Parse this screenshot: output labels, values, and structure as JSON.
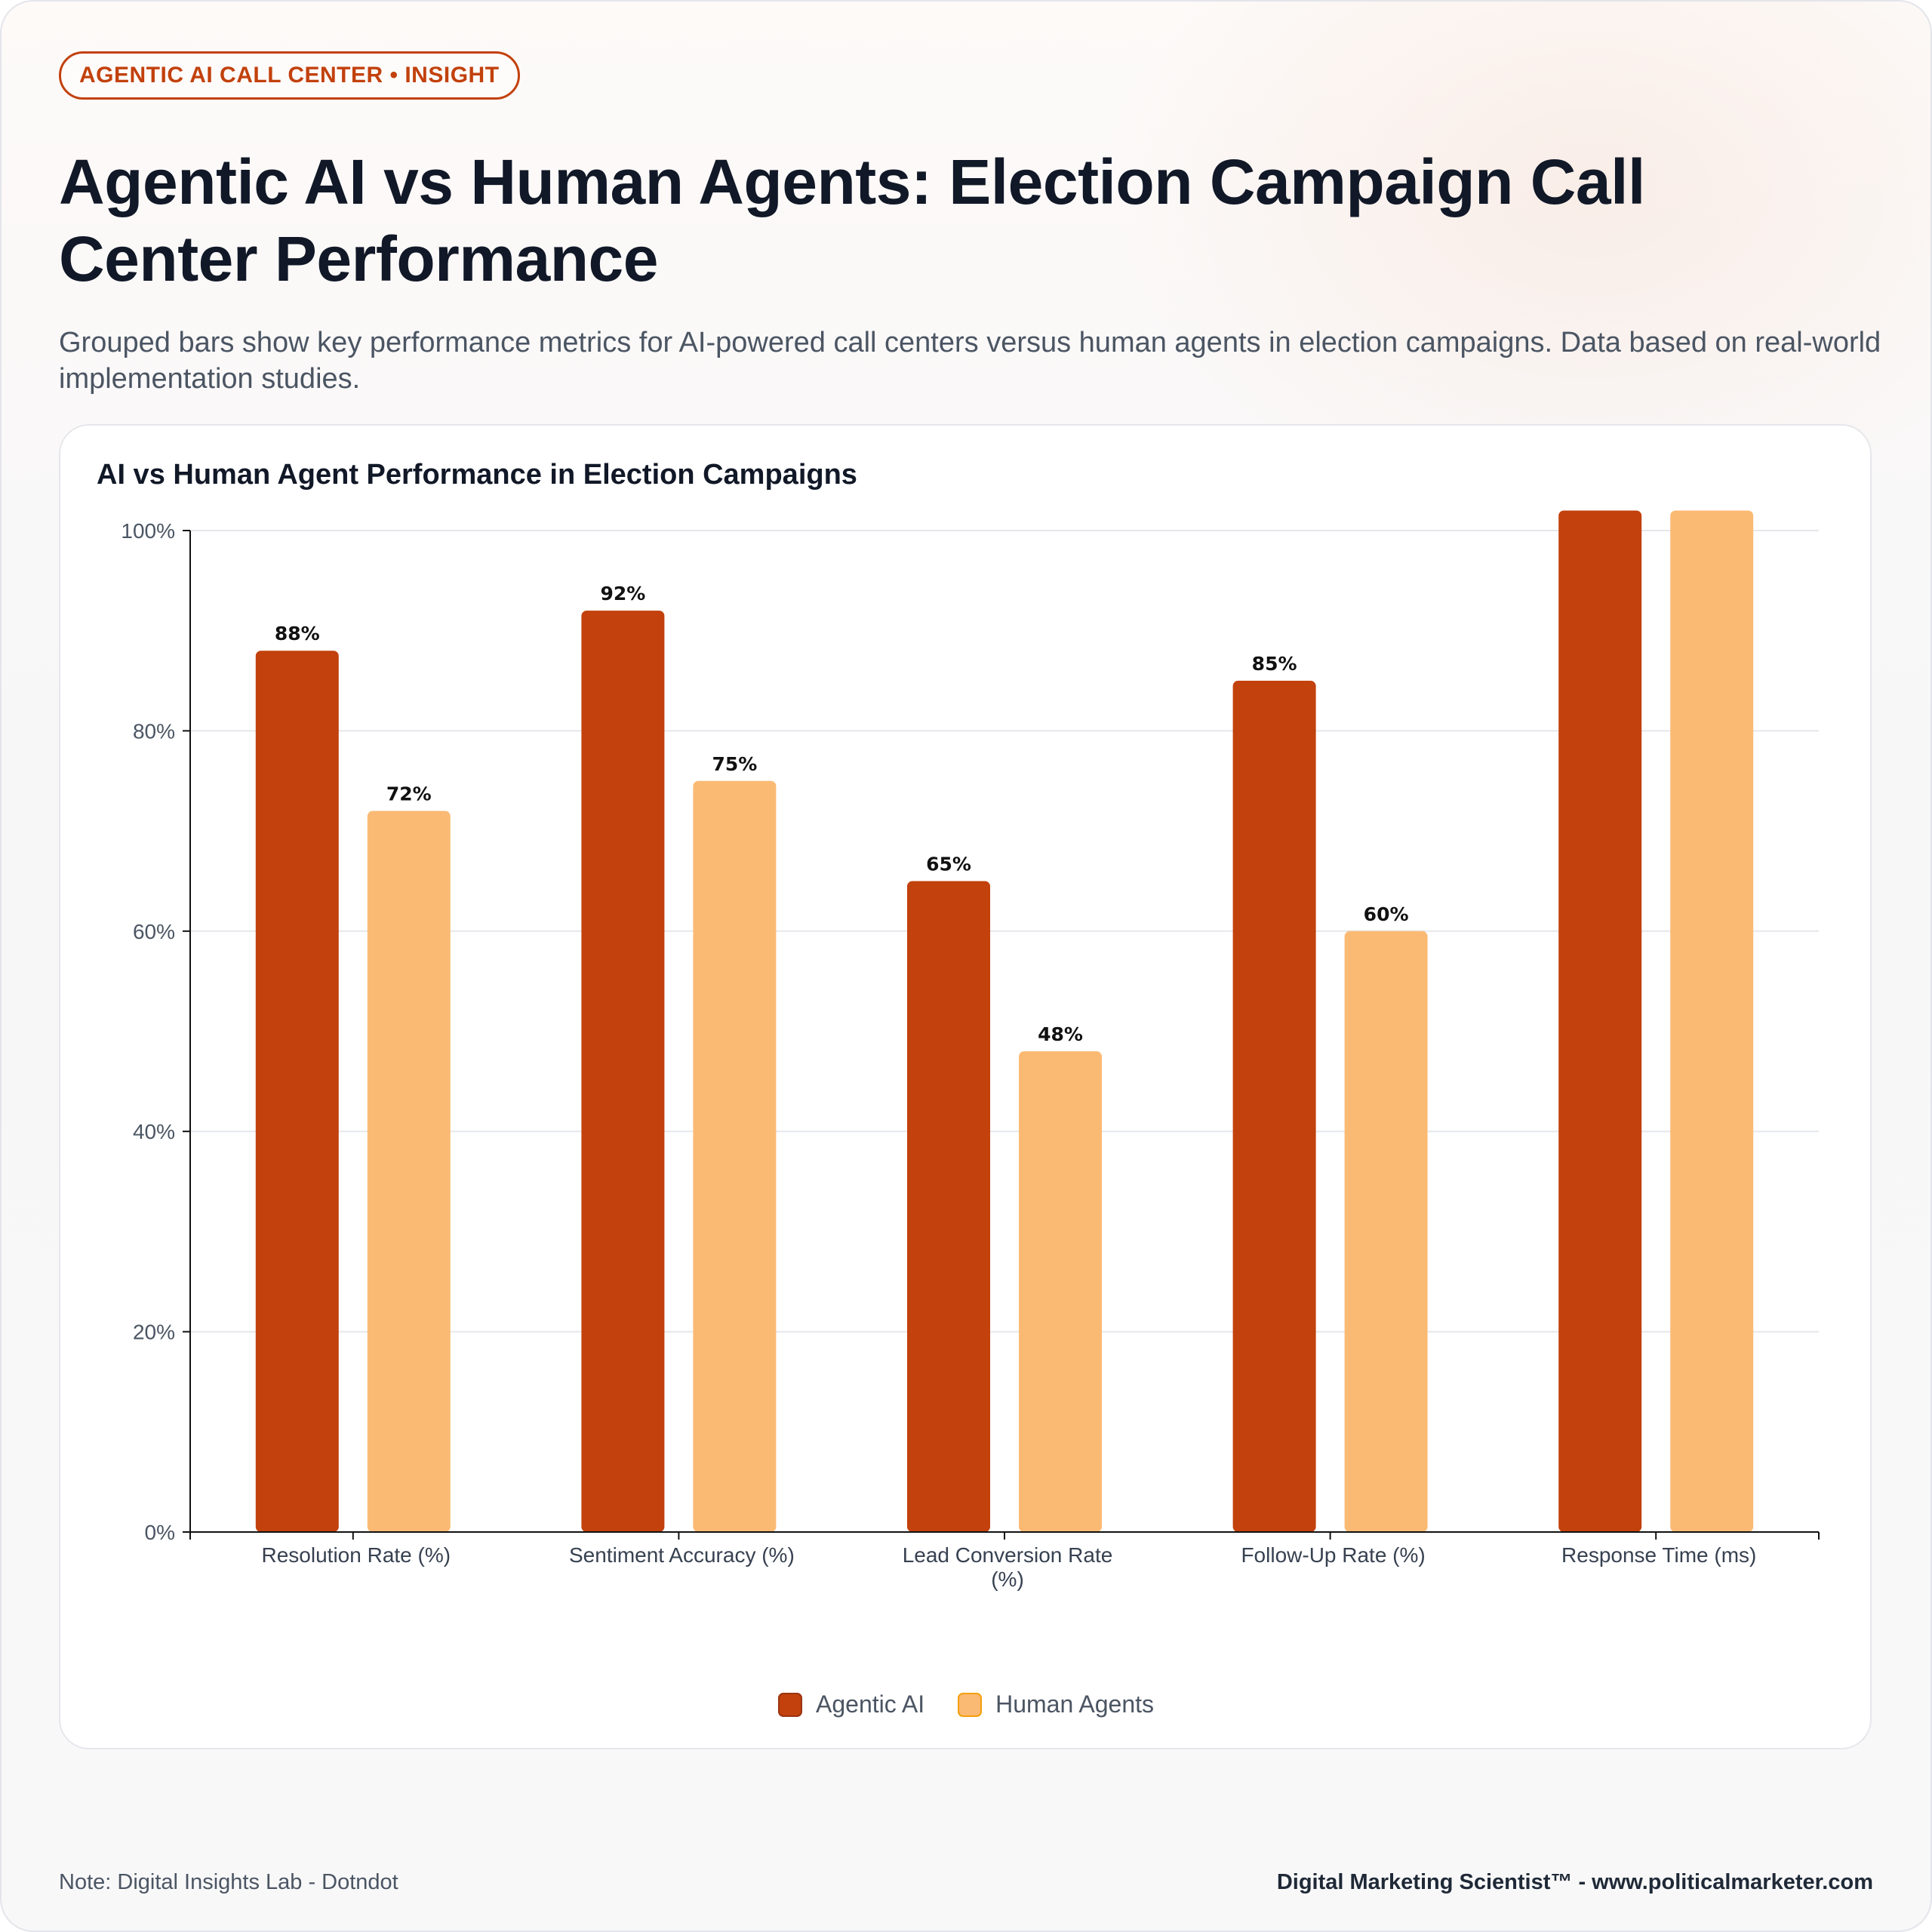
{
  "badge": "AGENTIC AI CALL CENTER • INSIGHT",
  "title": "Agentic AI vs Human Agents: Election Campaign Call Center Performance",
  "subtitle": "Grouped bars show key performance metrics for AI-powered call centers versus human agents in election campaigns. Data based on real-world implementation studies.",
  "chart_title": "AI vs Human Agent Performance in Election Campaigns",
  "footer": {
    "note": "Note: Digital Insights Lab - Dotndot",
    "brand": "Digital Marketing Scientist™ - www.politicalmarketer.com"
  },
  "colors": {
    "ai": "#c2410c",
    "human": "#fbba74",
    "grid": "#e5e7eb",
    "axis": "#111111"
  },
  "chart_data": {
    "type": "bar",
    "title": "AI vs Human Agent Performance in Election Campaigns",
    "categories": [
      [
        "Resolution Rate (%)"
      ],
      [
        "Sentiment Accuracy (%)"
      ],
      [
        "Lead Conversion Rate",
        "(%)"
      ],
      [
        "Follow-Up Rate (%)"
      ],
      [
        "Response Time (ms)"
      ]
    ],
    "series": [
      {
        "name": "Agentic AI",
        "values": [
          88,
          92,
          65,
          85,
          102
        ],
        "labels": [
          "88%",
          "92%",
          "65%",
          "85%",
          ""
        ]
      },
      {
        "name": "Human Agents",
        "values": [
          72,
          75,
          48,
          60,
          102
        ],
        "labels": [
          "72%",
          "75%",
          "48%",
          "60%",
          ""
        ]
      }
    ],
    "ylim": [
      0,
      100
    ],
    "yticks": [
      0,
      20,
      40,
      60,
      80,
      100
    ],
    "ytick_labels": [
      "0%",
      "20%",
      "40%",
      "60%",
      "80%",
      "100%"
    ],
    "grid": true,
    "legend_position": "bottom-center"
  }
}
